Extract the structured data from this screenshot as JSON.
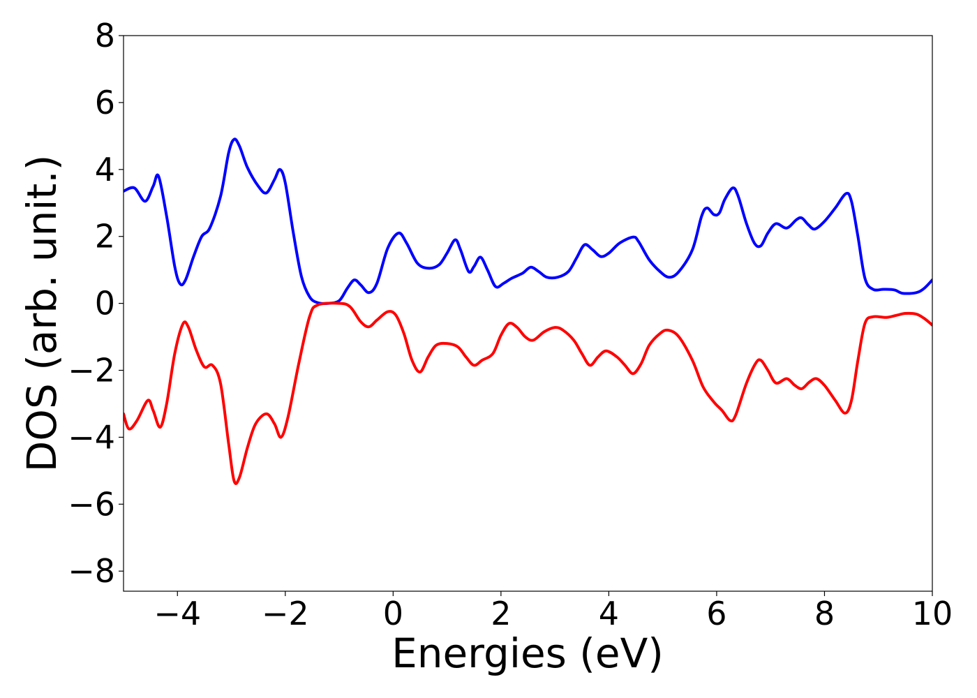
{
  "chart_data": {
    "type": "line",
    "title": "",
    "xlabel": "Energies (eV)",
    "ylabel": "DOS (arb. unit.)",
    "xlim": [
      -5,
      10
    ],
    "ylim": [
      -8.6,
      8.0
    ],
    "xticks": [
      -4,
      -2,
      0,
      2,
      4,
      6,
      8,
      10
    ],
    "xtick_labels": [
      "−4",
      "−2",
      "0",
      "2",
      "4",
      "6",
      "8",
      "10"
    ],
    "yticks": [
      -8,
      -6,
      -4,
      -2,
      0,
      2,
      4,
      6,
      8
    ],
    "ytick_labels": [
      "−8",
      "−6",
      "−4",
      "−2",
      "0",
      "2",
      "4",
      "6",
      "8"
    ],
    "grid": false,
    "legend": "none",
    "series": [
      {
        "color": "#0000ff",
        "points": [
          [
            -5.0,
            3.35
          ],
          [
            -4.8,
            3.45
          ],
          [
            -4.6,
            3.05
          ],
          [
            -4.45,
            3.5
          ],
          [
            -4.35,
            3.8
          ],
          [
            -4.2,
            2.6
          ],
          [
            -4.05,
            1.1
          ],
          [
            -3.95,
            0.58
          ],
          [
            -3.85,
            0.7
          ],
          [
            -3.7,
            1.4
          ],
          [
            -3.55,
            2.0
          ],
          [
            -3.4,
            2.25
          ],
          [
            -3.2,
            3.2
          ],
          [
            -3.05,
            4.5
          ],
          [
            -2.95,
            4.9
          ],
          [
            -2.85,
            4.7
          ],
          [
            -2.7,
            4.05
          ],
          [
            -2.5,
            3.5
          ],
          [
            -2.35,
            3.3
          ],
          [
            -2.2,
            3.7
          ],
          [
            -2.1,
            4.0
          ],
          [
            -2.0,
            3.6
          ],
          [
            -1.85,
            2.1
          ],
          [
            -1.7,
            0.8
          ],
          [
            -1.55,
            0.2
          ],
          [
            -1.4,
            0.02
          ],
          [
            -1.2,
            0.0
          ],
          [
            -1.0,
            0.08
          ],
          [
            -0.85,
            0.45
          ],
          [
            -0.72,
            0.7
          ],
          [
            -0.6,
            0.55
          ],
          [
            -0.45,
            0.32
          ],
          [
            -0.3,
            0.6
          ],
          [
            -0.1,
            1.65
          ],
          [
            0.1,
            2.1
          ],
          [
            0.25,
            1.8
          ],
          [
            0.45,
            1.2
          ],
          [
            0.65,
            1.05
          ],
          [
            0.85,
            1.15
          ],
          [
            1.0,
            1.5
          ],
          [
            1.15,
            1.9
          ],
          [
            1.25,
            1.6
          ],
          [
            1.4,
            0.95
          ],
          [
            1.5,
            1.1
          ],
          [
            1.62,
            1.38
          ],
          [
            1.75,
            1.0
          ],
          [
            1.9,
            0.5
          ],
          [
            2.05,
            0.6
          ],
          [
            2.2,
            0.75
          ],
          [
            2.4,
            0.9
          ],
          [
            2.55,
            1.08
          ],
          [
            2.7,
            0.95
          ],
          [
            2.85,
            0.78
          ],
          [
            3.05,
            0.78
          ],
          [
            3.25,
            0.95
          ],
          [
            3.4,
            1.35
          ],
          [
            3.55,
            1.75
          ],
          [
            3.7,
            1.6
          ],
          [
            3.85,
            1.4
          ],
          [
            4.0,
            1.5
          ],
          [
            4.2,
            1.8
          ],
          [
            4.45,
            1.98
          ],
          [
            4.55,
            1.85
          ],
          [
            4.75,
            1.3
          ],
          [
            4.95,
            0.95
          ],
          [
            5.12,
            0.78
          ],
          [
            5.3,
            0.95
          ],
          [
            5.55,
            1.6
          ],
          [
            5.72,
            2.6
          ],
          [
            5.82,
            2.85
          ],
          [
            5.95,
            2.65
          ],
          [
            6.05,
            2.7
          ],
          [
            6.15,
            3.1
          ],
          [
            6.3,
            3.45
          ],
          [
            6.4,
            3.2
          ],
          [
            6.55,
            2.4
          ],
          [
            6.7,
            1.8
          ],
          [
            6.82,
            1.72
          ],
          [
            6.95,
            2.1
          ],
          [
            7.1,
            2.38
          ],
          [
            7.3,
            2.25
          ],
          [
            7.48,
            2.5
          ],
          [
            7.58,
            2.55
          ],
          [
            7.7,
            2.35
          ],
          [
            7.82,
            2.22
          ],
          [
            8.0,
            2.45
          ],
          [
            8.2,
            2.85
          ],
          [
            8.4,
            3.28
          ],
          [
            8.5,
            3.05
          ],
          [
            8.62,
            2.0
          ],
          [
            8.75,
            0.75
          ],
          [
            8.9,
            0.42
          ],
          [
            9.1,
            0.42
          ],
          [
            9.3,
            0.4
          ],
          [
            9.45,
            0.3
          ],
          [
            9.7,
            0.32
          ],
          [
            9.85,
            0.45
          ],
          [
            10.0,
            0.7
          ]
        ]
      },
      {
        "color": "#ff0000",
        "points": [
          [
            -5.0,
            -3.3
          ],
          [
            -4.9,
            -3.75
          ],
          [
            -4.75,
            -3.5
          ],
          [
            -4.55,
            -2.9
          ],
          [
            -4.45,
            -3.2
          ],
          [
            -4.32,
            -3.7
          ],
          [
            -4.2,
            -3.0
          ],
          [
            -4.05,
            -1.5
          ],
          [
            -3.9,
            -0.62
          ],
          [
            -3.8,
            -0.7
          ],
          [
            -3.65,
            -1.4
          ],
          [
            -3.5,
            -1.9
          ],
          [
            -3.35,
            -1.85
          ],
          [
            -3.2,
            -2.4
          ],
          [
            -3.05,
            -4.2
          ],
          [
            -2.95,
            -5.3
          ],
          [
            -2.85,
            -5.2
          ],
          [
            -2.7,
            -4.3
          ],
          [
            -2.55,
            -3.6
          ],
          [
            -2.35,
            -3.3
          ],
          [
            -2.2,
            -3.6
          ],
          [
            -2.08,
            -4.0
          ],
          [
            -1.95,
            -3.4
          ],
          [
            -1.75,
            -1.8
          ],
          [
            -1.55,
            -0.4
          ],
          [
            -1.4,
            -0.05
          ],
          [
            -1.0,
            0.0
          ],
          [
            -0.8,
            -0.1
          ],
          [
            -0.6,
            -0.55
          ],
          [
            -0.45,
            -0.7
          ],
          [
            -0.3,
            -0.5
          ],
          [
            -0.1,
            -0.25
          ],
          [
            0.05,
            -0.35
          ],
          [
            0.2,
            -0.9
          ],
          [
            0.35,
            -1.7
          ],
          [
            0.5,
            -2.05
          ],
          [
            0.65,
            -1.6
          ],
          [
            0.8,
            -1.25
          ],
          [
            1.0,
            -1.2
          ],
          [
            1.2,
            -1.3
          ],
          [
            1.35,
            -1.6
          ],
          [
            1.5,
            -1.85
          ],
          [
            1.65,
            -1.7
          ],
          [
            1.85,
            -1.5
          ],
          [
            2.0,
            -0.95
          ],
          [
            2.15,
            -0.6
          ],
          [
            2.3,
            -0.72
          ],
          [
            2.45,
            -1.0
          ],
          [
            2.6,
            -1.1
          ],
          [
            2.8,
            -0.85
          ],
          [
            3.0,
            -0.72
          ],
          [
            3.15,
            -0.8
          ],
          [
            3.35,
            -1.1
          ],
          [
            3.5,
            -1.5
          ],
          [
            3.65,
            -1.85
          ],
          [
            3.8,
            -1.6
          ],
          [
            3.95,
            -1.42
          ],
          [
            4.15,
            -1.6
          ],
          [
            4.3,
            -1.85
          ],
          [
            4.45,
            -2.1
          ],
          [
            4.6,
            -1.8
          ],
          [
            4.75,
            -1.25
          ],
          [
            4.95,
            -0.9
          ],
          [
            5.1,
            -0.8
          ],
          [
            5.3,
            -1.0
          ],
          [
            5.55,
            -1.7
          ],
          [
            5.75,
            -2.5
          ],
          [
            5.95,
            -2.95
          ],
          [
            6.1,
            -3.2
          ],
          [
            6.25,
            -3.5
          ],
          [
            6.35,
            -3.35
          ],
          [
            6.55,
            -2.4
          ],
          [
            6.72,
            -1.8
          ],
          [
            6.82,
            -1.7
          ],
          [
            6.95,
            -2.0
          ],
          [
            7.1,
            -2.38
          ],
          [
            7.3,
            -2.25
          ],
          [
            7.45,
            -2.45
          ],
          [
            7.58,
            -2.55
          ],
          [
            7.72,
            -2.35
          ],
          [
            7.85,
            -2.25
          ],
          [
            8.0,
            -2.45
          ],
          [
            8.2,
            -2.9
          ],
          [
            8.38,
            -3.28
          ],
          [
            8.5,
            -2.9
          ],
          [
            8.62,
            -1.7
          ],
          [
            8.75,
            -0.6
          ],
          [
            8.9,
            -0.4
          ],
          [
            9.15,
            -0.42
          ],
          [
            9.35,
            -0.35
          ],
          [
            9.5,
            -0.3
          ],
          [
            9.7,
            -0.32
          ],
          [
            9.85,
            -0.45
          ],
          [
            10.0,
            -0.65
          ]
        ]
      }
    ]
  }
}
